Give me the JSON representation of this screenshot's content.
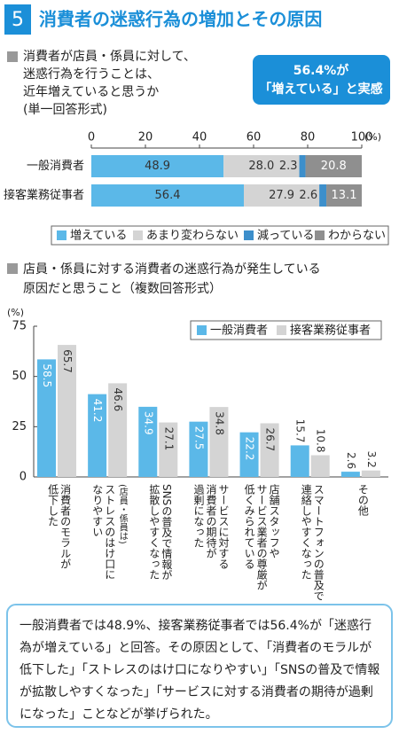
{
  "header": {
    "number": "5",
    "title": "消費者の迷惑行為の増加とその原因"
  },
  "chart_data": [
    {
      "type": "bar",
      "orientation": "horizontal",
      "stacked": true,
      "title": [
        "消費者が店員・係員に対して、",
        "迷惑行為を行うことは、",
        "近年増えていると思うか",
        "(単一回答形式)"
      ],
      "annotation": [
        "56.4%が",
        "「増えている」と実感"
      ],
      "x_unit": "(%)",
      "categories": [
        "一般消費者",
        "接客業務従事者"
      ],
      "series": [
        {
          "name": "増えている",
          "color": "#5bb8e8",
          "values": [
            48.9,
            56.4
          ],
          "value_labels": [
            "48.9",
            "56.4"
          ]
        },
        {
          "name": "あまり変わらない",
          "color": "#d4d4d4",
          "values": [
            28.0,
            27.9
          ],
          "value_labels": [
            "28.0",
            "27.9"
          ]
        },
        {
          "name": "減っている",
          "color": "#3d8fcb",
          "values": [
            2.3,
            2.6
          ],
          "value_labels": [
            "2.3",
            "2.6"
          ]
        },
        {
          "name": "わからない",
          "color": "#8f8f8f",
          "values": [
            20.8,
            13.1
          ],
          "value_labels": [
            "20.8",
            "13.1"
          ]
        }
      ],
      "xlim": [
        0,
        100
      ],
      "xticks": [
        0,
        20,
        40,
        60,
        80,
        100
      ]
    },
    {
      "type": "bar",
      "orientation": "vertical",
      "stacked": false,
      "title": [
        "店員・係員に対する消費者の迷惑行為が発生している",
        "原因だと思うこと（複数回答形式）"
      ],
      "y_unit": "(%)",
      "categories": [
        [
          "消費者のモラルが",
          "低下した"
        ],
        [
          "(店員・係員は)",
          "ストレスのはけ口に",
          "なりやすい"
        ],
        [
          "SNSの普及で情報が",
          "拡散しやすくなった"
        ],
        [
          "サービスに対する",
          "消費者の期待が",
          "過剰になった"
        ],
        [
          "店舗スタッフや",
          "サービス業者の尊厳が",
          "低くみられている"
        ],
        [
          "スマートフォンの普及で",
          "連絡しやすくなった"
        ],
        [
          "その他"
        ]
      ],
      "series": [
        {
          "name": "一般消費者",
          "color": "#5bb8e8",
          "values": [
            58.5,
            41.2,
            34.9,
            27.5,
            22.2,
            15.7,
            2.6
          ]
        },
        {
          "name": "接客業務従事者",
          "color": "#d4d4d4",
          "values": [
            65.7,
            46.6,
            27.1,
            34.8,
            26.7,
            10.8,
            3.2
          ]
        }
      ],
      "ylim": [
        0,
        75
      ],
      "yticks": [
        0,
        25,
        50,
        75
      ]
    }
  ],
  "note": [
    "一般消費者では48.9%、接客業務従事者では56.4%が「迷惑行",
    "為が増えている」と回答。その原因として、「消費者のモラルが",
    "低下した」「ストレスのはけ口になりやすい」「SNSの普及で情報",
    "が拡散しやすくなった」「サービスに対する消費者の期待が過剰",
    "になった」ことなどが挙げられた。"
  ]
}
